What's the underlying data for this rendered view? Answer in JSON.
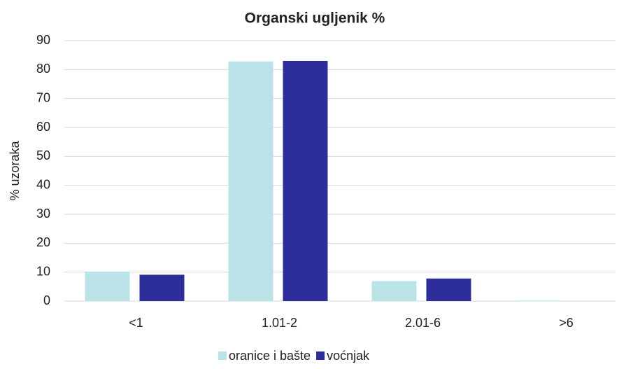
{
  "chart_data": {
    "type": "bar",
    "title": "Organski ugljenik %",
    "ylabel": "%  uzoraka",
    "categories": [
      "<1",
      "1.01-2",
      "2.01-6",
      ">6"
    ],
    "series": [
      {
        "name": "oranice i bašte",
        "color": "#b9e3e6",
        "values": [
          10.2,
          82.8,
          6.9,
          0.2
        ]
      },
      {
        "name": "voćnjak",
        "color": "#2e2e9a",
        "values": [
          9.1,
          83.0,
          7.8,
          0
        ]
      }
    ],
    "ylim": [
      0,
      90
    ],
    "yticks": [
      0,
      10,
      20,
      30,
      40,
      50,
      60,
      70,
      80,
      90
    ],
    "grid": true,
    "legend": "bottom"
  }
}
